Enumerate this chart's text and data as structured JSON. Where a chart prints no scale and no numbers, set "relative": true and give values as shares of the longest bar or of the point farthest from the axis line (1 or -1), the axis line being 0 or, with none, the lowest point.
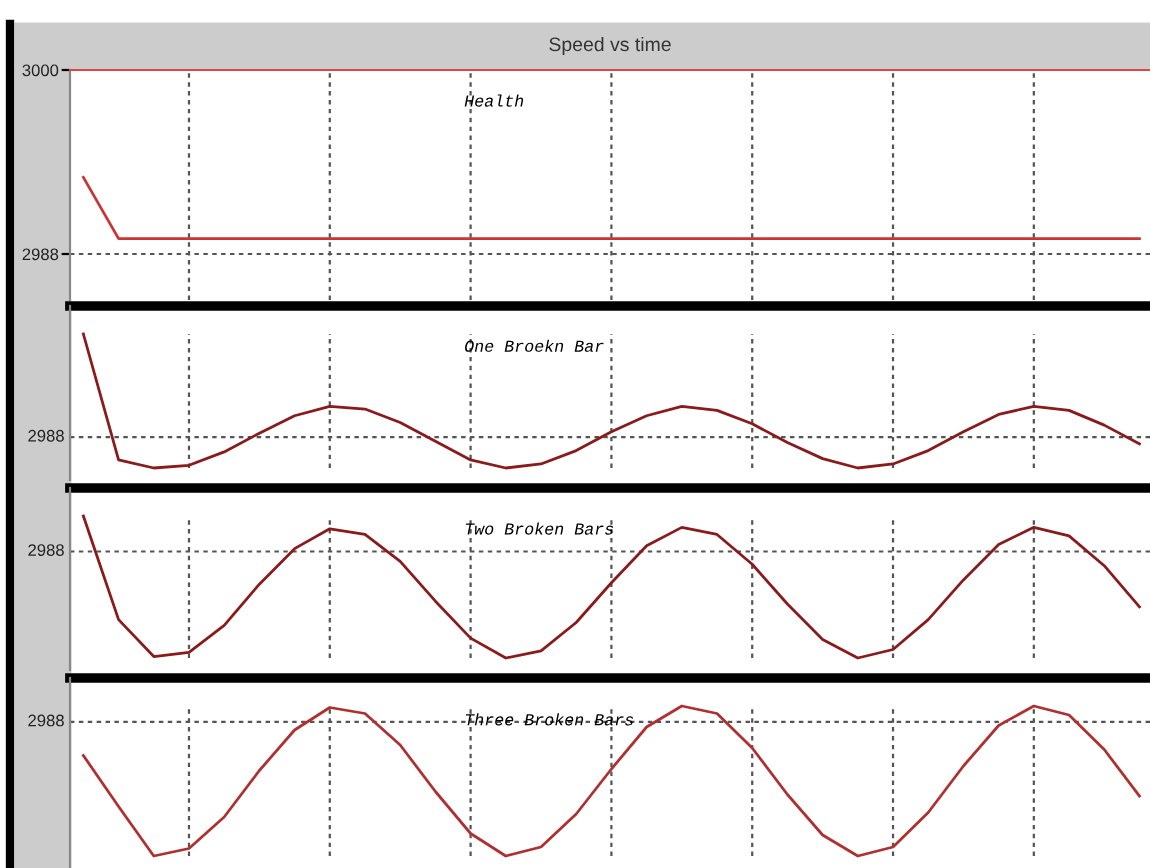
{
  "chart_data": [
    {
      "type": "line",
      "title": "Speed vs time",
      "annotations": [
        "Health"
      ],
      "categories": [
        null,
        null,
        null,
        null,
        null,
        null,
        null,
        null,
        null,
        null,
        null,
        null,
        null,
        null,
        null,
        null,
        null,
        null,
        null,
        null,
        null,
        null,
        null,
        null,
        null,
        null,
        null,
        null,
        null,
        null,
        null
      ],
      "ylim": [
        2985,
        3000
      ],
      "yticks": [
        2988,
        3000
      ],
      "grid": true,
      "series": [
        {
          "color": "#cc3333",
          "values": [
            2993,
            2989,
            2989,
            2989,
            2989,
            2989,
            2989,
            2989,
            2989,
            2989,
            2989,
            2989,
            2989,
            2989,
            2989,
            2989,
            2989,
            2989,
            2989,
            2989,
            2989,
            2989,
            2989,
            2989,
            2989,
            2989,
            2989,
            2989,
            2989,
            2989,
            2989
          ]
        }
      ]
    },
    {
      "type": "line",
      "relative": true,
      "annotations": [
        "One Broekn Bar",
        "2988"
      ],
      "categories": [
        null,
        null,
        null,
        null,
        null,
        null,
        null,
        null,
        null,
        null,
        null,
        null,
        null,
        null,
        null,
        null,
        null,
        null,
        null,
        null,
        null,
        null,
        null,
        null,
        null,
        null,
        null,
        null,
        null,
        null,
        null
      ],
      "grid": true,
      "ref_lines": [
        {
          "axis": "y",
          "value": 0.23
        }
      ],
      "series": [
        {
          "color": "#8b1a1a",
          "values": [
            1,
            0.06,
            0,
            0.02,
            0.12,
            0.26,
            0.39,
            0.46,
            0.44,
            0.34,
            0.2,
            0.06,
            0,
            0.03,
            0.13,
            0.27,
            0.39,
            0.46,
            0.43,
            0.33,
            0.19,
            0.07,
            0,
            0.03,
            0.13,
            0.27,
            0.4,
            0.46,
            0.43,
            0.32,
            0.18
          ]
        }
      ]
    },
    {
      "type": "line",
      "relative": true,
      "annotations": [
        "Two Broken Bars",
        "2988"
      ],
      "categories": [
        null,
        null,
        null,
        null,
        null,
        null,
        null,
        null,
        null,
        null,
        null,
        null,
        null,
        null,
        null,
        null,
        null,
        null,
        null,
        null,
        null,
        null,
        null,
        null,
        null,
        null,
        null,
        null,
        null,
        null,
        null
      ],
      "grid": true,
      "ref_lines": [
        {
          "axis": "y",
          "value": 0.75
        }
      ],
      "series": [
        {
          "color": "#8b1a1a",
          "values": [
            1,
            0.27,
            0.01,
            0.04,
            0.23,
            0.52,
            0.77,
            0.91,
            0.87,
            0.68,
            0.4,
            0.14,
            0,
            0.05,
            0.25,
            0.53,
            0.79,
            0.92,
            0.87,
            0.66,
            0.38,
            0.13,
            0,
            0.06,
            0.27,
            0.55,
            0.8,
            0.92,
            0.86,
            0.65,
            0.36
          ]
        }
      ]
    },
    {
      "type": "line",
      "relative": true,
      "annotations": [
        "Three Broken Bars",
        "2988"
      ],
      "categories": [
        null,
        null,
        null,
        null,
        null,
        null,
        null,
        null,
        null,
        null,
        null,
        null,
        null,
        null,
        null,
        null,
        null,
        null,
        null,
        null,
        null,
        null,
        null,
        null,
        null,
        null,
        null,
        null,
        null,
        null,
        null
      ],
      "grid": true,
      "ref_lines": [
        {
          "axis": "y",
          "value": 0.894
        }
      ],
      "series": [
        {
          "color": "#b03030",
          "values": [
            0.67,
            0.33,
            0,
            0.05,
            0.26,
            0.57,
            0.84,
            0.99,
            0.95,
            0.74,
            0.43,
            0.15,
            0,
            0.06,
            0.28,
            0.58,
            0.86,
            1,
            0.95,
            0.72,
            0.41,
            0.14,
            0,
            0.06,
            0.29,
            0.6,
            0.87,
            1,
            0.94,
            0.71,
            0.4
          ]
        }
      ]
    }
  ]
}
